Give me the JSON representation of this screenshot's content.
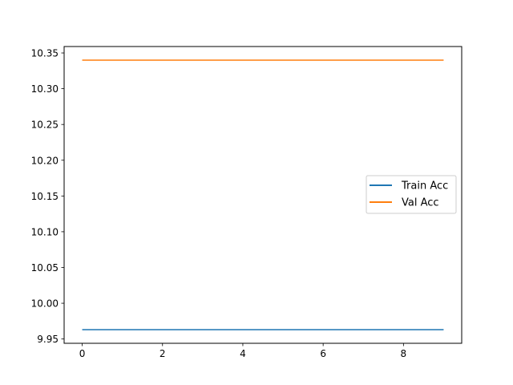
{
  "chart_data": {
    "type": "line",
    "title": "",
    "xlabel": "",
    "ylabel": "",
    "x": [
      0,
      1,
      2,
      3,
      4,
      5,
      6,
      7,
      8,
      9
    ],
    "series": [
      {
        "name": "Train Acc",
        "color": "#1f77b4",
        "values": [
          9.963,
          9.963,
          9.963,
          9.963,
          9.963,
          9.963,
          9.963,
          9.963,
          9.963,
          9.963
        ]
      },
      {
        "name": "Val Acc",
        "color": "#ff7f0e",
        "values": [
          10.34,
          10.34,
          10.34,
          10.34,
          10.34,
          10.34,
          10.34,
          10.34,
          10.34,
          10.34
        ]
      }
    ],
    "xlim": [
      -0.45,
      9.45
    ],
    "ylim": [
      9.944,
      10.359
    ],
    "xticks": [
      0,
      2,
      4,
      6,
      8
    ],
    "xtick_labels": [
      "0",
      "2",
      "4",
      "6",
      "8"
    ],
    "yticks": [
      9.95,
      10.0,
      10.05,
      10.1,
      10.15,
      10.2,
      10.25,
      10.3,
      10.35
    ],
    "ytick_labels": [
      "9.95",
      "10.00",
      "10.05",
      "10.10",
      "10.15",
      "10.20",
      "10.25",
      "10.30",
      "10.35"
    ],
    "grid": false,
    "legend_position": "center-right"
  }
}
